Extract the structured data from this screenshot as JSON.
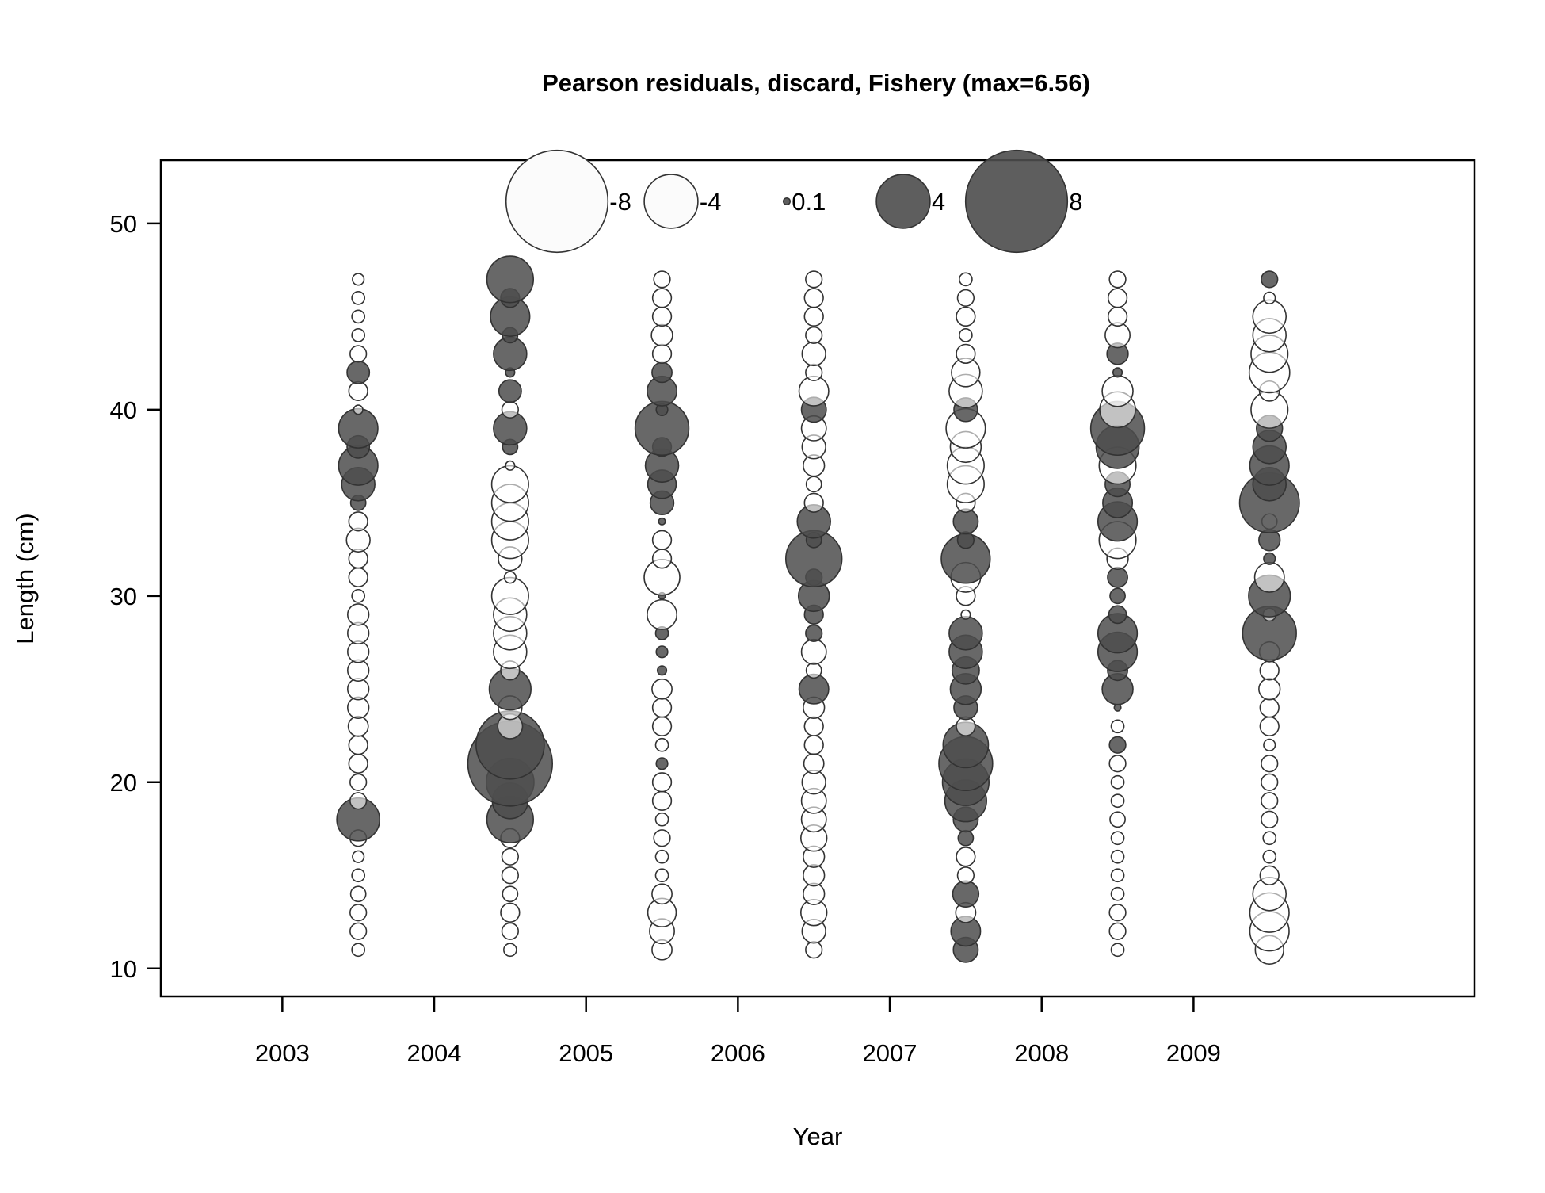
{
  "chart_data": {
    "type": "scatter",
    "subtype": "bubble",
    "title": "Pearson residuals, discard, Fishery (max=6.56)",
    "xlabel": "Year",
    "ylabel": "Length (cm)",
    "xlim": [
      2002.2,
      2010.85
    ],
    "ylim": [
      8.5,
      53.4
    ],
    "x_ticks": [
      2003,
      2004,
      2005,
      2006,
      2007,
      2008,
      2009
    ],
    "y_ticks": [
      10,
      20,
      30,
      40,
      50
    ],
    "legend": {
      "position": "top-center",
      "entries": [
        {
          "label": "-8",
          "value": -8
        },
        {
          "label": "-4",
          "value": -4
        },
        {
          "label": "0.1",
          "value": 0.1
        },
        {
          "label": "4",
          "value": 4
        },
        {
          "label": "8",
          "value": 8
        }
      ]
    },
    "colors": {
      "positive": "#4d4d4d",
      "negative": "#ffffff",
      "outline": "#333333"
    },
    "lengths": [
      11,
      12,
      13,
      14,
      15,
      16,
      17,
      18,
      19,
      20,
      21,
      22,
      23,
      24,
      25,
      26,
      27,
      28,
      29,
      30,
      31,
      32,
      33,
      34,
      35,
      36,
      37,
      38,
      39,
      40,
      41,
      42,
      43,
      44,
      45,
      46,
      47
    ],
    "series": [
      {
        "name": "2003",
        "x": 2003.5,
        "residuals": [
          -0.6,
          -0.9,
          -0.9,
          -0.8,
          -0.6,
          -0.5,
          -0.9,
          3.1,
          -0.9,
          -0.9,
          -1.1,
          -1.1,
          -1.2,
          -1.3,
          -1.3,
          -1.3,
          -1.3,
          -1.3,
          -1.3,
          -0.6,
          -1.1,
          -1.1,
          -1.5,
          -1.1,
          0.8,
          2.3,
          2.8,
          1.4,
          2.8,
          -0.3,
          -1.1,
          1.4,
          -0.9,
          -0.6,
          -0.6,
          -0.6,
          -0.5
        ]
      },
      {
        "name": "2004",
        "x": 2004.5,
        "residuals": [
          -0.6,
          -0.9,
          -1.1,
          -0.8,
          -0.9,
          -0.9,
          -1.1,
          3.4,
          2.5,
          3.5,
          6.56,
          5.2,
          -1.6,
          -1.5,
          3.0,
          -1.1,
          -2.3,
          -2.3,
          -2.3,
          -2.6,
          -0.5,
          -1.5,
          -2.6,
          -2.6,
          -2.6,
          -2.6,
          -0.3,
          0.8,
          2.3,
          -0.9,
          1.4,
          0.3,
          2.3,
          0.8,
          2.8,
          1.1,
          3.4
        ]
      },
      {
        "name": "2005",
        "x": 2005.5,
        "residuals": [
          -1.2,
          -1.6,
          -1.9,
          -1.2,
          -0.6,
          -0.6,
          -0.9,
          -0.6,
          -1.1,
          -1.1,
          0.5,
          -0.6,
          -1.1,
          -1.1,
          -1.2,
          0.3,
          0.5,
          0.6,
          -2.0,
          0.1,
          -2.5,
          -1.1,
          -1.1,
          0.1,
          1.5,
          1.9,
          2.3,
          1.1,
          4.0,
          0.5,
          2.0,
          1.2,
          -1.1,
          -1.3,
          -1.1,
          -1.1,
          -0.9
        ]
      },
      {
        "name": "2006",
        "x": 2006.5,
        "residuals": [
          -0.9,
          -1.5,
          -1.7,
          -1.3,
          -1.3,
          -1.3,
          -1.7,
          -1.6,
          -1.6,
          -1.5,
          -1.2,
          -1.1,
          -1.1,
          -1.3,
          2.0,
          -0.8,
          -1.6,
          0.9,
          1.1,
          2.1,
          0.9,
          4.2,
          0.8,
          2.3,
          -1.1,
          -0.8,
          -1.3,
          -1.5,
          -1.6,
          1.6,
          -2.0,
          -0.9,
          -1.5,
          -0.9,
          -1.1,
          -1.1,
          -0.9
        ]
      },
      {
        "name": "2007",
        "x": 2007.5,
        "residuals": [
          1.6,
          2.0,
          -1.2,
          1.7,
          -0.9,
          -1.1,
          0.8,
          1.6,
          3.0,
          3.4,
          4.0,
          3.3,
          -1.1,
          1.5,
          2.1,
          1.8,
          2.3,
          2.3,
          -0.3,
          -1.1,
          -2.0,
          3.6,
          0.9,
          1.6,
          -1.1,
          -2.6,
          -2.6,
          -2.1,
          -2.8,
          1.5,
          -2.3,
          -1.9,
          -1.1,
          -0.6,
          -1.1,
          -0.9,
          -0.6
        ]
      },
      {
        "name": "2008",
        "x": 2008.5,
        "residuals": [
          -0.6,
          -0.9,
          -0.9,
          -0.6,
          -0.6,
          -0.6,
          -0.6,
          -0.8,
          -0.6,
          -0.6,
          -0.9,
          0.9,
          -0.6,
          0.1,
          2.1,
          1.2,
          2.8,
          2.8,
          1.0,
          0.8,
          1.2,
          -1.3,
          -2.6,
          2.8,
          2.0,
          1.6,
          -2.6,
          3.1,
          4.0,
          -2.5,
          -2.1,
          0.3,
          1.3,
          -1.6,
          -1.1,
          -1.1,
          -0.9
        ]
      },
      {
        "name": "2009",
        "x": 2009.5,
        "residuals": [
          -1.9,
          -2.8,
          -2.8,
          -2.3,
          -1.1,
          -0.6,
          -0.6,
          -0.9,
          -0.9,
          -0.9,
          -0.9,
          -0.5,
          -1.1,
          -1.1,
          -1.3,
          -1.1,
          -1.2,
          4.0,
          -0.6,
          3.0,
          -2.0,
          0.5,
          1.3,
          -0.8,
          4.5,
          2.3,
          2.8,
          2.3,
          1.7,
          -2.6,
          -1.2,
          -2.9,
          -2.6,
          -2.3,
          -2.3,
          -0.5,
          0.9
        ]
      }
    ]
  }
}
